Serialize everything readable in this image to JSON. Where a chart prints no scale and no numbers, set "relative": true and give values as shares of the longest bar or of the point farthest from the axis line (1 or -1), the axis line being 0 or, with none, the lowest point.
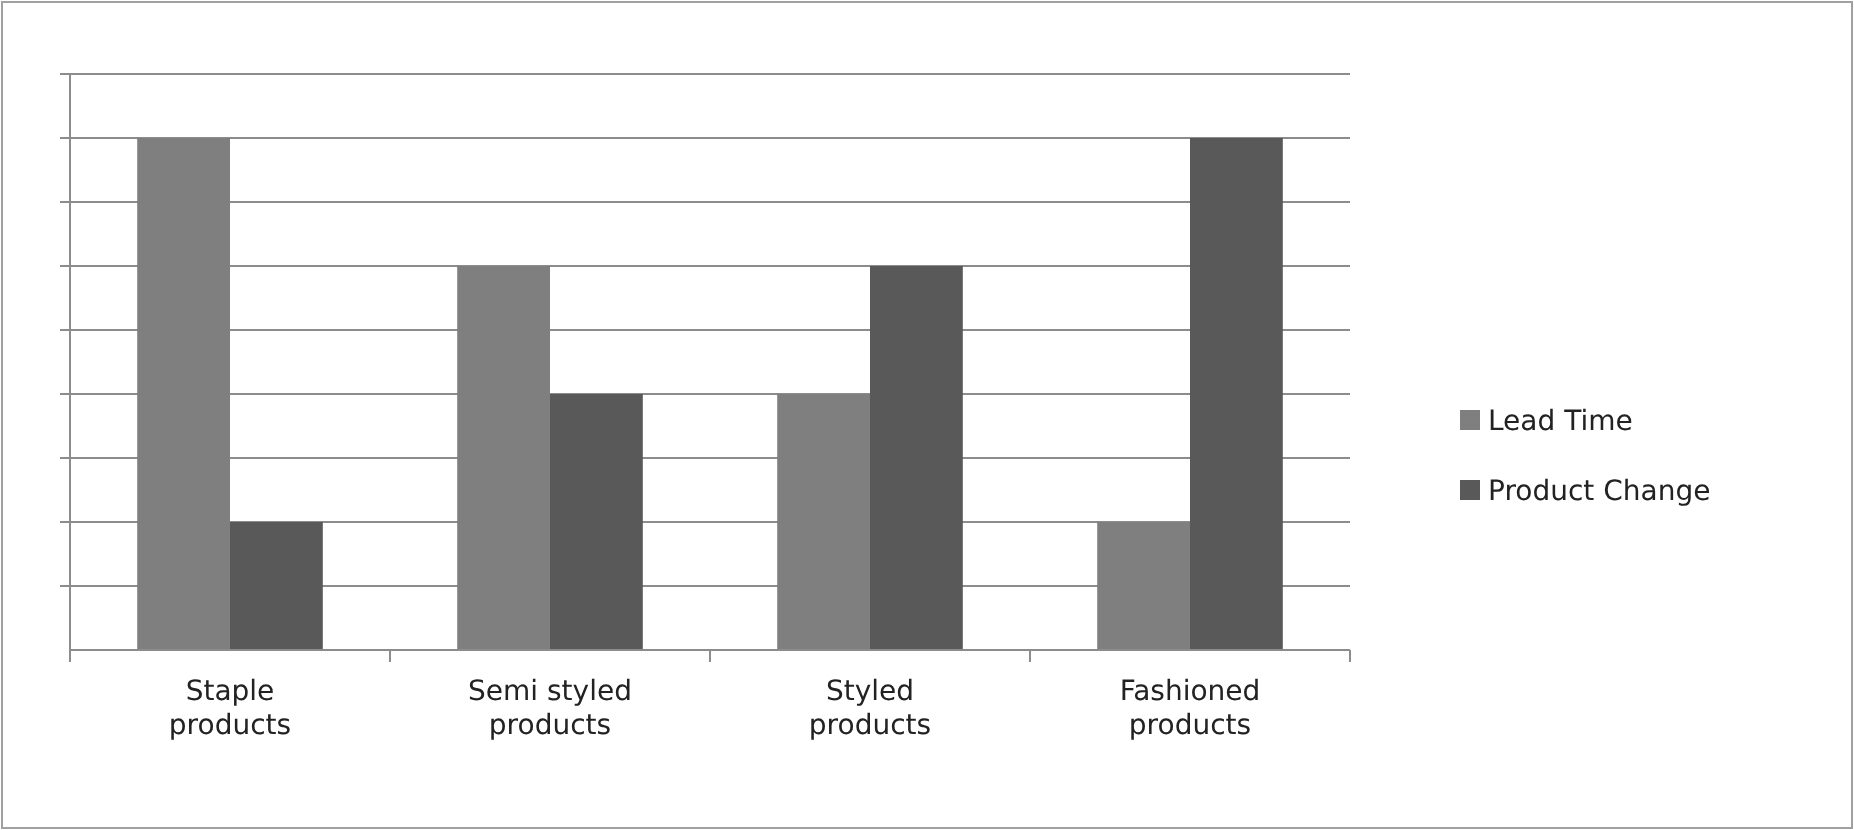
{
  "chart_data": {
    "type": "bar",
    "relative": true,
    "grid": true,
    "legend": "right",
    "categories": [
      "Staple products",
      "Semi styled products",
      "Styled products",
      "Fashioned products"
    ],
    "series": [
      {
        "name": "Lead Time",
        "color": "#7f7f7f",
        "values": [
          1,
          0.75,
          0.5,
          0.25
        ]
      },
      {
        "name": "Product Change",
        "color": "#595959",
        "values": [
          0.25,
          0.5,
          0.75,
          1
        ]
      }
    ]
  }
}
